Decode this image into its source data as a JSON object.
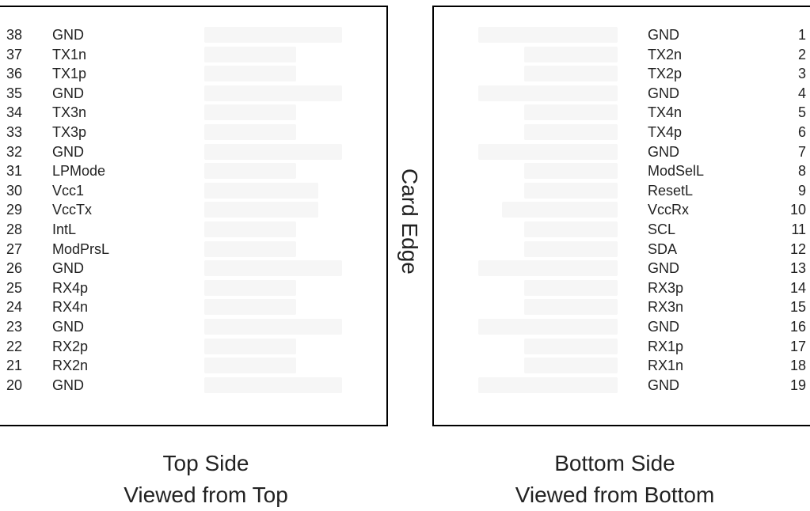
{
  "card_edge_label": "Card Edge",
  "top_side": {
    "caption_line1": "Top Side",
    "caption_line2": "Viewed from Top",
    "pins": [
      {
        "num": "38",
        "signal": "GND",
        "pad": "long"
      },
      {
        "num": "37",
        "signal": "TX1n",
        "pad": "short"
      },
      {
        "num": "36",
        "signal": "TX1p",
        "pad": "short"
      },
      {
        "num": "35",
        "signal": "GND",
        "pad": "long"
      },
      {
        "num": "34",
        "signal": "TX3n",
        "pad": "short"
      },
      {
        "num": "33",
        "signal": "TX3p",
        "pad": "short"
      },
      {
        "num": "32",
        "signal": "GND",
        "pad": "long"
      },
      {
        "num": "31",
        "signal": "LPMode",
        "pad": "short"
      },
      {
        "num": "30",
        "signal": "Vcc1",
        "pad": "medium"
      },
      {
        "num": "29",
        "signal": "VccTx",
        "pad": "medium"
      },
      {
        "num": "28",
        "signal": "IntL",
        "pad": "short"
      },
      {
        "num": "27",
        "signal": "ModPrsL",
        "pad": "short"
      },
      {
        "num": "26",
        "signal": "GND",
        "pad": "long"
      },
      {
        "num": "25",
        "signal": "RX4p",
        "pad": "short"
      },
      {
        "num": "24",
        "signal": "RX4n",
        "pad": "short"
      },
      {
        "num": "23",
        "signal": "GND",
        "pad": "long"
      },
      {
        "num": "22",
        "signal": "RX2p",
        "pad": "short"
      },
      {
        "num": "21",
        "signal": "RX2n",
        "pad": "short"
      },
      {
        "num": "20",
        "signal": "GND",
        "pad": "long"
      }
    ]
  },
  "bottom_side": {
    "caption_line1": "Bottom Side",
    "caption_line2": "Viewed from Bottom",
    "pins": [
      {
        "num": "1",
        "signal": "GND",
        "pad": "long"
      },
      {
        "num": "2",
        "signal": "TX2n",
        "pad": "short"
      },
      {
        "num": "3",
        "signal": "TX2p",
        "pad": "short"
      },
      {
        "num": "4",
        "signal": "GND",
        "pad": "long"
      },
      {
        "num": "5",
        "signal": "TX4n",
        "pad": "short"
      },
      {
        "num": "6",
        "signal": "TX4p",
        "pad": "short"
      },
      {
        "num": "7",
        "signal": "GND",
        "pad": "long"
      },
      {
        "num": "8",
        "signal": "ModSelL",
        "pad": "short"
      },
      {
        "num": "9",
        "signal": "ResetL",
        "pad": "short"
      },
      {
        "num": "10",
        "signal": "VccRx",
        "pad": "medium"
      },
      {
        "num": "11",
        "signal": "SCL",
        "pad": "short"
      },
      {
        "num": "12",
        "signal": "SDA",
        "pad": "short"
      },
      {
        "num": "13",
        "signal": "GND",
        "pad": "long"
      },
      {
        "num": "14",
        "signal": "RX3p",
        "pad": "short"
      },
      {
        "num": "15",
        "signal": "RX3n",
        "pad": "short"
      },
      {
        "num": "16",
        "signal": "GND",
        "pad": "long"
      },
      {
        "num": "17",
        "signal": "RX1p",
        "pad": "short"
      },
      {
        "num": "18",
        "signal": "RX1n",
        "pad": "short"
      },
      {
        "num": "19",
        "signal": "GND",
        "pad": "long"
      }
    ]
  }
}
